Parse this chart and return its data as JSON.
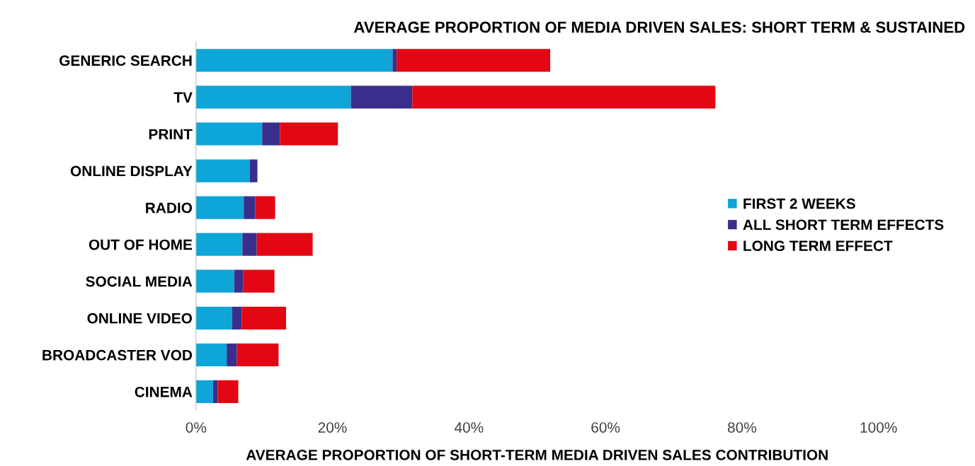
{
  "chart_data": {
    "type": "bar",
    "orientation": "horizontal",
    "stacked": true,
    "title": "AVERAGE PROPORTION OF MEDIA DRIVEN SALES: SHORT TERM & SUSTAINED",
    "xlabel": "AVERAGE PROPORTION OF SHORT-TERM MEDIA DRIVEN SALES CONTRIBUTION",
    "categories": [
      "GENERIC SEARCH",
      "TV",
      "PRINT",
      "ONLINE DISPLAY",
      "RADIO",
      "OUT OF HOME",
      "SOCIAL MEDIA",
      "ONLINE VIDEO",
      "BROADCASTER VOD",
      "CINEMA"
    ],
    "series": [
      {
        "name": "FIRST 2 WEEKS",
        "color": "#0ea5d8",
        "values": [
          28.8,
          22.7,
          9.7,
          7.9,
          7.0,
          6.8,
          5.6,
          5.3,
          4.5,
          2.5
        ]
      },
      {
        "name": "ALL SHORT TERM EFFECTS",
        "color": "#3a2e8c",
        "values": [
          0.6,
          9.0,
          2.6,
          1.1,
          1.7,
          2.1,
          1.3,
          1.4,
          1.5,
          0.7
        ]
      },
      {
        "name": "LONG TERM EFFECT",
        "color": "#e30613",
        "values": [
          22.5,
          44.4,
          8.5,
          0,
          2.9,
          8.2,
          4.6,
          6.5,
          6.1,
          3.0
        ]
      }
    ],
    "xlim": [
      0,
      100
    ],
    "xticks": [
      {
        "value": 0,
        "label": "0%"
      },
      {
        "value": 20,
        "label": "20%"
      },
      {
        "value": 40,
        "label": "40%"
      },
      {
        "value": 60,
        "label": "60%"
      },
      {
        "value": 80,
        "label": "80%"
      },
      {
        "value": 100,
        "label": "100%"
      }
    ],
    "grid": false,
    "legend": "right"
  }
}
